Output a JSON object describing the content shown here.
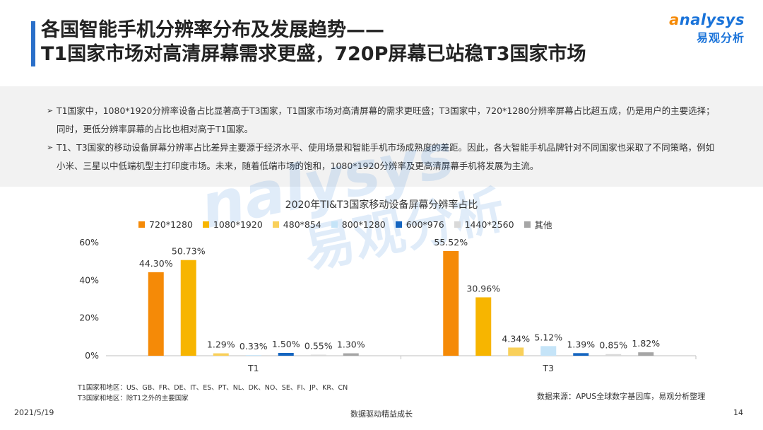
{
  "page": {
    "title_line1": "各国智能手机分辨率分布及发展趋势——",
    "title_line2": "T1国家市场对高清屏幕需求更盛，720P屏幕已站稳T3国家市场",
    "logo_en_a": "a",
    "logo_en_rest": "nalysys",
    "logo_cn": "易观分析",
    "bullets": [
      "T1国家中，1080*1920分辨率设备占比显著高于T3国家，T1国家市场对高清屏幕的需求更旺盛；T3国家中，720*1280分辨率屏幕占比超五成，仍是用户的主要选择；同时，更低分辨率屏幕的占比也相对高于T1国家。",
      "T1、T3国家的移动设备屏幕分辨率占比差异主要源于经济水平、使用场景和智能手机市场成熟度的差距。因此，各大智能手机品牌针对不同国家也采取了不同策略，例如小米、三星以中低端机型主打印度市场。未来，随着低端市场的饱和，1080*1920分辨率及更高清屏幕手机将发展为主流。"
    ],
    "watermark_en": "nalysys",
    "watermark_cn": "易观分析",
    "note_t1": "T1国家和地区：US、GB、FR、DE、IT、ES、PT、NL、DK、NO、SE、FI、JP、KR、CN",
    "note_t3": "T3国家和地区：除T1之外的主要国家",
    "source": "数据来源：APUS全球数字基因库，易观分析整理",
    "footer_date": "2021/5/19",
    "footer_center": "数据驱动精益成长",
    "footer_page": "14"
  },
  "chart_data": {
    "type": "bar",
    "title": "2020年TI&T3国家移动设备屏幕分辨率占比",
    "categories": [
      "T1",
      "T3"
    ],
    "ylim": [
      0,
      60
    ],
    "yticks": [
      "0%",
      "20%",
      "40%",
      "60%"
    ],
    "ytick_values": [
      0,
      20,
      40,
      60
    ],
    "grid": false,
    "legend_position": "top",
    "series": [
      {
        "name": "720*1280",
        "color": "#f58a07",
        "values": [
          44.3,
          55.52
        ],
        "labels": [
          "44.30%",
          "55.52%"
        ]
      },
      {
        "name": "1080*1920",
        "color": "#f7b500",
        "values": [
          50.73,
          30.96
        ],
        "labels": [
          "50.73%",
          "30.96%"
        ]
      },
      {
        "name": "480*854",
        "color": "#f9d05a",
        "values": [
          1.29,
          4.34
        ],
        "labels": [
          "1.29%",
          "4.34%"
        ]
      },
      {
        "name": "800*1280",
        "color": "#c5e4f8",
        "values": [
          0.33,
          5.12
        ],
        "labels": [
          "0.33%",
          "5.12%"
        ]
      },
      {
        "name": "600*976",
        "color": "#1565c0",
        "values": [
          1.5,
          1.39
        ],
        "labels": [
          "1.50%",
          "1.39%"
        ]
      },
      {
        "name": "1440*2560",
        "color": "#d9d9d9",
        "values": [
          0.55,
          0.85
        ],
        "labels": [
          "0.55%",
          "0.85%"
        ]
      },
      {
        "name": "其他",
        "color": "#a6a6a6",
        "values": [
          1.3,
          1.82
        ],
        "labels": [
          "1.30%",
          "1.82%"
        ]
      }
    ]
  }
}
